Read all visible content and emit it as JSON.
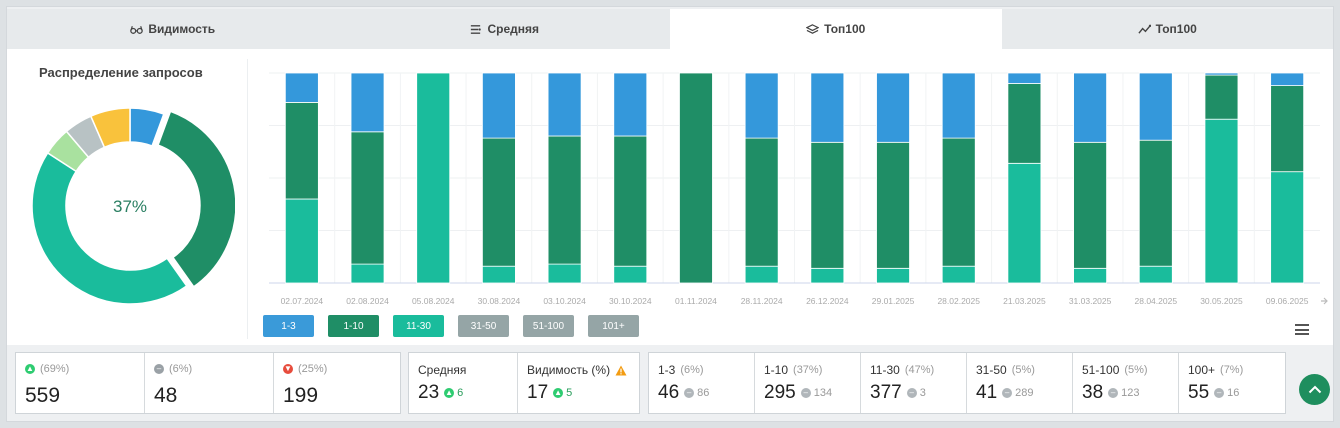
{
  "tabs": [
    {
      "label": "Видимость",
      "icon": "glasses-icon"
    },
    {
      "label": "Средняя",
      "icon": "list-icon"
    },
    {
      "label": "Топ100",
      "icon": "layers-icon",
      "active": true
    },
    {
      "label": "Топ100",
      "icon": "trend-icon"
    }
  ],
  "donut": {
    "title": "Распределение запросов",
    "center_label": "37%",
    "segments": [
      {
        "name": "1-3",
        "value": 6,
        "color": "#3498db"
      },
      {
        "name": "1-10",
        "value": 37,
        "color": "#1f8e66"
      },
      {
        "name": "11-30",
        "value": 47,
        "color": "#1abc9c"
      },
      {
        "name": "31-50",
        "value": 5,
        "color": "#a9e19f"
      },
      {
        "name": "51-100",
        "value": 5,
        "color": "#b8c2c4"
      },
      {
        "name": "101+",
        "value": 7,
        "color": "#f9c23c"
      }
    ]
  },
  "chart_data": {
    "type": "bar",
    "stacked": true,
    "categories": [
      "02.07.2024",
      "02.08.2024",
      "05.08.2024",
      "30.08.2024",
      "03.10.2024",
      "30.10.2024",
      "01.11.2024",
      "28.11.2024",
      "26.12.2024",
      "29.01.2025",
      "28.02.2025",
      "21.03.2025",
      "31.03.2025",
      "28.04.2025",
      "30.05.2025",
      "09.06.2025"
    ],
    "series": [
      {
        "name": "11-30",
        "color": "#1abc9c",
        "values": [
          40,
          9,
          100,
          8,
          9,
          8,
          0,
          8,
          7,
          7,
          8,
          57,
          7,
          8,
          78,
          53
        ]
      },
      {
        "name": "1-10",
        "color": "#1f8e66",
        "values": [
          46,
          63,
          0,
          61,
          61,
          62,
          100,
          61,
          60,
          60,
          61,
          38,
          60,
          60,
          21,
          41
        ]
      },
      {
        "name": "1-3",
        "color": "#3498db",
        "values": [
          14,
          28,
          0,
          31,
          30,
          30,
          0,
          31,
          33,
          33,
          31,
          5,
          33,
          32,
          1,
          6
        ]
      }
    ],
    "ylim": [
      0,
      100
    ],
    "grid": true
  },
  "legend": [
    {
      "label": "1-3",
      "color": "#3a9ad9"
    },
    {
      "label": "1-10",
      "color": "#1f8e66"
    },
    {
      "label": "11-30",
      "color": "#1abc9c"
    },
    {
      "label": "31-50",
      "color": "#95a5a6"
    },
    {
      "label": "51-100",
      "color": "#95a5a6"
    },
    {
      "label": "101+",
      "color": "#95a5a6"
    }
  ],
  "stats_change": [
    {
      "pct": "(69%)",
      "value": "559",
      "icon": "arrow-up-circle-icon",
      "color": "#2ecc71"
    },
    {
      "pct": "(6%)",
      "value": "48",
      "icon": "minus-circle-icon",
      "color": "#9aa1a6"
    },
    {
      "pct": "(25%)",
      "value": "199",
      "icon": "arrow-down-circle-icon",
      "color": "#e74c3c"
    }
  ],
  "stats_avg": [
    {
      "label": "Средняя",
      "value": "23",
      "delta": "6"
    },
    {
      "label": "Видимость (%)",
      "value": "17",
      "delta": "5",
      "warning": true
    }
  ],
  "stats_groups": [
    {
      "label": "1-3",
      "pct": "(6%)",
      "value": "46",
      "delta": "86"
    },
    {
      "label": "1-10",
      "pct": "(37%)",
      "value": "295",
      "delta": "134"
    },
    {
      "label": "11-30",
      "pct": "(47%)",
      "value": "377",
      "delta": "3"
    },
    {
      "label": "31-50",
      "pct": "(5%)",
      "value": "41",
      "delta": "289"
    },
    {
      "label": "51-100",
      "pct": "(5%)",
      "value": "38",
      "delta": "123"
    },
    {
      "label": "100+",
      "pct": "(7%)",
      "value": "55",
      "delta": "16"
    }
  ],
  "colors": {
    "accent": "#1e8e5e",
    "positive": "#2ecc71",
    "negative": "#e74c3c",
    "warning": "#f39c12"
  }
}
